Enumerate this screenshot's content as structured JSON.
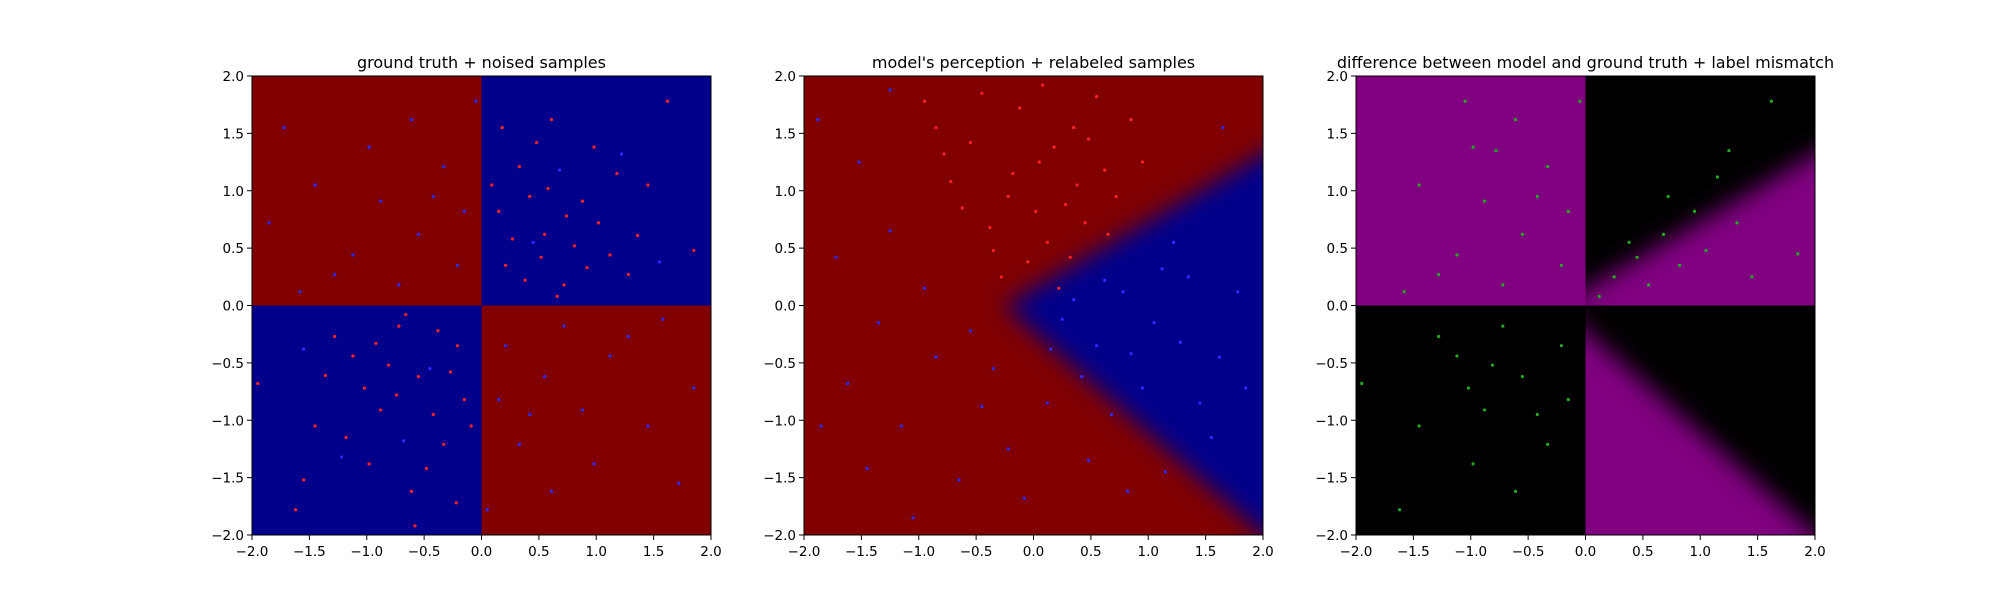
{
  "chart_data": [
    {
      "type": "heatmap",
      "title": "ground truth + noised samples",
      "xlim": [
        -2.0,
        2.0
      ],
      "ylim": [
        -2.0,
        2.0
      ],
      "xticks": [
        "−2.0",
        "−1.5",
        "−1.0",
        "−0.5",
        "0.0",
        "0.5",
        "1.0",
        "1.5",
        "2.0"
      ],
      "yticks": [
        "−2.0",
        "−1.5",
        "−1.0",
        "−0.5",
        "0.0",
        "0.5",
        "1.0",
        "1.5",
        "2.0"
      ],
      "background": "xor-quadrants",
      "colors": {
        "class_a": "#800000",
        "class_b": "#00008b",
        "pts_a": "#ff2222",
        "pts_b": "#2a2aff"
      },
      "points": [
        {
          "x": 0.55,
          "y": 0.62,
          "c": "a"
        },
        {
          "x": 0.21,
          "y": 0.35,
          "c": "a"
        },
        {
          "x": 0.88,
          "y": 0.91,
          "c": "a"
        },
        {
          "x": 1.12,
          "y": 0.44,
          "c": "a"
        },
        {
          "x": 0.33,
          "y": 1.21,
          "c": "a"
        },
        {
          "x": 0.72,
          "y": 0.18,
          "c": "a"
        },
        {
          "x": 1.45,
          "y": 1.05,
          "c": "a"
        },
        {
          "x": 0.15,
          "y": 0.82,
          "c": "a"
        },
        {
          "x": 0.98,
          "y": 1.38,
          "c": "a"
        },
        {
          "x": 0.61,
          "y": 1.62,
          "c": "a"
        },
        {
          "x": 1.28,
          "y": 0.27,
          "c": "a"
        },
        {
          "x": 0.42,
          "y": 0.95,
          "c": "a"
        },
        {
          "x": 0.81,
          "y": 0.52,
          "c": "a"
        },
        {
          "x": 1.02,
          "y": 0.72,
          "c": "a"
        },
        {
          "x": 0.27,
          "y": 0.58,
          "c": "a"
        },
        {
          "x": 0.66,
          "y": 0.08,
          "c": "a"
        },
        {
          "x": 1.62,
          "y": 1.78,
          "c": "a"
        },
        {
          "x": 0.48,
          "y": 1.42,
          "c": "a"
        },
        {
          "x": 0.09,
          "y": 1.05,
          "c": "a"
        },
        {
          "x": 1.18,
          "y": 1.15,
          "c": "a"
        },
        {
          "x": 0.74,
          "y": 0.78,
          "c": "a"
        },
        {
          "x": 0.38,
          "y": 0.22,
          "c": "a"
        },
        {
          "x": 0.92,
          "y": 0.33,
          "c": "a"
        },
        {
          "x": 1.36,
          "y": 0.61,
          "c": "a"
        },
        {
          "x": 0.58,
          "y": 1.02,
          "c": "a"
        },
        {
          "x": 0.18,
          "y": 1.55,
          "c": "a"
        },
        {
          "x": 1.85,
          "y": 0.48,
          "c": "a"
        },
        {
          "x": 0.52,
          "y": 0.42,
          "c": "a"
        },
        {
          "x": -0.55,
          "y": -0.62,
          "c": "a"
        },
        {
          "x": -0.21,
          "y": -0.35,
          "c": "a"
        },
        {
          "x": -0.88,
          "y": -0.91,
          "c": "a"
        },
        {
          "x": -1.12,
          "y": -0.44,
          "c": "a"
        },
        {
          "x": -0.33,
          "y": -1.21,
          "c": "a"
        },
        {
          "x": -0.72,
          "y": -0.18,
          "c": "a"
        },
        {
          "x": -1.45,
          "y": -1.05,
          "c": "a"
        },
        {
          "x": -0.15,
          "y": -0.82,
          "c": "a"
        },
        {
          "x": -0.98,
          "y": -1.38,
          "c": "a"
        },
        {
          "x": -0.61,
          "y": -1.62,
          "c": "a"
        },
        {
          "x": -1.28,
          "y": -0.27,
          "c": "a"
        },
        {
          "x": -0.42,
          "y": -0.95,
          "c": "a"
        },
        {
          "x": -0.81,
          "y": -0.52,
          "c": "a"
        },
        {
          "x": -1.02,
          "y": -0.72,
          "c": "a"
        },
        {
          "x": -0.27,
          "y": -0.58,
          "c": "a"
        },
        {
          "x": -0.66,
          "y": -0.08,
          "c": "a"
        },
        {
          "x": -1.62,
          "y": -1.78,
          "c": "a"
        },
        {
          "x": -0.48,
          "y": -1.42,
          "c": "a"
        },
        {
          "x": -0.09,
          "y": -1.05,
          "c": "a"
        },
        {
          "x": -1.18,
          "y": -1.15,
          "c": "a"
        },
        {
          "x": -0.74,
          "y": -0.78,
          "c": "a"
        },
        {
          "x": -0.38,
          "y": -0.22,
          "c": "a"
        },
        {
          "x": -0.92,
          "y": -0.33,
          "c": "a"
        },
        {
          "x": -1.36,
          "y": -0.61,
          "c": "a"
        },
        {
          "x": -1.95,
          "y": -0.68,
          "c": "a"
        },
        {
          "x": -0.58,
          "y": -1.92,
          "c": "a"
        },
        {
          "x": -1.55,
          "y": -1.52,
          "c": "a"
        },
        {
          "x": -0.22,
          "y": -1.72,
          "c": "a"
        },
        {
          "x": -0.55,
          "y": 0.62,
          "c": "b"
        },
        {
          "x": -0.21,
          "y": 0.35,
          "c": "b"
        },
        {
          "x": -0.88,
          "y": 0.91,
          "c": "b"
        },
        {
          "x": -1.12,
          "y": 0.44,
          "c": "b"
        },
        {
          "x": -0.33,
          "y": 1.21,
          "c": "b"
        },
        {
          "x": -0.72,
          "y": 0.18,
          "c": "b"
        },
        {
          "x": -1.45,
          "y": 1.05,
          "c": "b"
        },
        {
          "x": -0.15,
          "y": 0.82,
          "c": "b"
        },
        {
          "x": -0.98,
          "y": 1.38,
          "c": "b"
        },
        {
          "x": -0.61,
          "y": 1.62,
          "c": "b"
        },
        {
          "x": -1.28,
          "y": 0.27,
          "c": "b"
        },
        {
          "x": -0.42,
          "y": 0.95,
          "c": "b"
        },
        {
          "x": -1.72,
          "y": 1.55,
          "c": "b"
        },
        {
          "x": -1.85,
          "y": 0.72,
          "c": "b"
        },
        {
          "x": -0.05,
          "y": 1.78,
          "c": "b"
        },
        {
          "x": -1.58,
          "y": 0.12,
          "c": "b"
        },
        {
          "x": 0.55,
          "y": -0.62,
          "c": "b"
        },
        {
          "x": 0.21,
          "y": -0.35,
          "c": "b"
        },
        {
          "x": 0.88,
          "y": -0.91,
          "c": "b"
        },
        {
          "x": 1.12,
          "y": -0.44,
          "c": "b"
        },
        {
          "x": 0.33,
          "y": -1.21,
          "c": "b"
        },
        {
          "x": 0.72,
          "y": -0.18,
          "c": "b"
        },
        {
          "x": 1.45,
          "y": -1.05,
          "c": "b"
        },
        {
          "x": 0.15,
          "y": -0.82,
          "c": "b"
        },
        {
          "x": 0.98,
          "y": -1.38,
          "c": "b"
        },
        {
          "x": 0.61,
          "y": -1.62,
          "c": "b"
        },
        {
          "x": 1.28,
          "y": -0.27,
          "c": "b"
        },
        {
          "x": 0.42,
          "y": -0.95,
          "c": "b"
        },
        {
          "x": 1.72,
          "y": -1.55,
          "c": "b"
        },
        {
          "x": 1.85,
          "y": -0.72,
          "c": "b"
        },
        {
          "x": 0.05,
          "y": -1.78,
          "c": "b"
        },
        {
          "x": 1.58,
          "y": -0.12,
          "c": "b"
        },
        {
          "x": 0.45,
          "y": 0.55,
          "c": "b"
        },
        {
          "x": 1.22,
          "y": 1.32,
          "c": "b"
        },
        {
          "x": 0.68,
          "y": 1.18,
          "c": "b"
        },
        {
          "x": 1.55,
          "y": 0.38,
          "c": "b"
        },
        {
          "x": -0.45,
          "y": -0.55,
          "c": "b"
        },
        {
          "x": -1.22,
          "y": -1.32,
          "c": "b"
        },
        {
          "x": -0.68,
          "y": -1.18,
          "c": "b"
        },
        {
          "x": -1.55,
          "y": -0.38,
          "c": "b"
        }
      ]
    },
    {
      "type": "heatmap",
      "title": "model's perception + relabeled samples",
      "xlim": [
        -2.0,
        2.0
      ],
      "ylim": [
        -2.0,
        2.0
      ],
      "xticks": [
        "−2.0",
        "−1.5",
        "−1.0",
        "−0.5",
        "0.0",
        "0.5",
        "1.0",
        "1.5",
        "2.0"
      ],
      "yticks": [
        "−2.0",
        "−1.5",
        "−1.0",
        "−0.5",
        "0.0",
        "0.5",
        "1.0",
        "1.5",
        "2.0"
      ],
      "background": "wedge",
      "colors": {
        "class_a": "#800000",
        "class_b": "#00008b",
        "pts_a": "#ff2222",
        "pts_b": "#2a2aff"
      },
      "points": [
        {
          "x": 0.05,
          "y": 1.25,
          "c": "a"
        },
        {
          "x": -0.22,
          "y": 0.95,
          "c": "a"
        },
        {
          "x": 0.35,
          "y": 1.55,
          "c": "a"
        },
        {
          "x": 0.12,
          "y": 0.55,
          "c": "a"
        },
        {
          "x": -0.55,
          "y": 1.42,
          "c": "a"
        },
        {
          "x": 0.62,
          "y": 1.18,
          "c": "a"
        },
        {
          "x": -0.38,
          "y": 0.68,
          "c": "a"
        },
        {
          "x": 0.28,
          "y": 0.88,
          "c": "a"
        },
        {
          "x": -0.12,
          "y": 1.72,
          "c": "a"
        },
        {
          "x": 0.85,
          "y": 1.62,
          "c": "a"
        },
        {
          "x": -0.72,
          "y": 1.08,
          "c": "a"
        },
        {
          "x": 0.45,
          "y": 0.72,
          "c": "a"
        },
        {
          "x": -0.05,
          "y": 0.38,
          "c": "a"
        },
        {
          "x": 0.18,
          "y": 1.38,
          "c": "a"
        },
        {
          "x": -0.45,
          "y": 1.85,
          "c": "a"
        },
        {
          "x": 0.72,
          "y": 0.95,
          "c": "a"
        },
        {
          "x": -0.85,
          "y": 1.55,
          "c": "a"
        },
        {
          "x": 0.55,
          "y": 1.82,
          "c": "a"
        },
        {
          "x": -0.28,
          "y": 0.25,
          "c": "a"
        },
        {
          "x": 0.38,
          "y": 1.05,
          "c": "a"
        },
        {
          "x": 0.02,
          "y": 0.82,
          "c": "a"
        },
        {
          "x": -0.62,
          "y": 0.85,
          "c": "a"
        },
        {
          "x": 0.95,
          "y": 1.25,
          "c": "a"
        },
        {
          "x": 0.22,
          "y": 0.15,
          "c": "a"
        },
        {
          "x": -0.18,
          "y": 1.15,
          "c": "a"
        },
        {
          "x": 0.48,
          "y": 1.45,
          "c": "a"
        },
        {
          "x": -0.95,
          "y": 1.78,
          "c": "a"
        },
        {
          "x": 0.08,
          "y": 1.92,
          "c": "a"
        },
        {
          "x": -0.35,
          "y": 0.48,
          "c": "a"
        },
        {
          "x": 0.65,
          "y": 0.62,
          "c": "a"
        },
        {
          "x": -0.78,
          "y": 1.32,
          "c": "a"
        },
        {
          "x": 0.32,
          "y": 0.42,
          "c": "a"
        },
        {
          "x": 0.55,
          "y": -0.35,
          "c": "b"
        },
        {
          "x": 1.05,
          "y": -0.15,
          "c": "b"
        },
        {
          "x": 0.78,
          "y": 0.12,
          "c": "b"
        },
        {
          "x": 1.35,
          "y": 0.25,
          "c": "b"
        },
        {
          "x": 0.42,
          "y": -0.62,
          "c": "b"
        },
        {
          "x": 1.62,
          "y": -0.45,
          "c": "b"
        },
        {
          "x": 0.95,
          "y": -0.72,
          "c": "b"
        },
        {
          "x": 1.22,
          "y": 0.55,
          "c": "b"
        },
        {
          "x": 0.25,
          "y": -0.12,
          "c": "b"
        },
        {
          "x": 1.78,
          "y": 0.12,
          "c": "b"
        },
        {
          "x": 0.68,
          "y": -0.95,
          "c": "b"
        },
        {
          "x": 1.45,
          "y": -0.85,
          "c": "b"
        },
        {
          "x": 0.35,
          "y": 0.05,
          "c": "b"
        },
        {
          "x": 1.12,
          "y": 0.32,
          "c": "b"
        },
        {
          "x": 0.85,
          "y": -0.42,
          "c": "b"
        },
        {
          "x": 1.55,
          "y": -1.15,
          "c": "b"
        },
        {
          "x": 0.15,
          "y": -0.38,
          "c": "b"
        },
        {
          "x": 1.85,
          "y": -0.72,
          "c": "b"
        },
        {
          "x": 0.62,
          "y": 0.22,
          "c": "b"
        },
        {
          "x": 1.28,
          "y": -0.32,
          "c": "b"
        },
        {
          "x": -0.85,
          "y": -0.45,
          "c": "b"
        },
        {
          "x": -1.35,
          "y": -0.15,
          "c": "b"
        },
        {
          "x": -0.45,
          "y": -0.88,
          "c": "b"
        },
        {
          "x": -1.62,
          "y": -0.68,
          "c": "b"
        },
        {
          "x": -0.22,
          "y": -1.25,
          "c": "b"
        },
        {
          "x": -1.15,
          "y": -1.05,
          "c": "b"
        },
        {
          "x": -0.65,
          "y": -1.52,
          "c": "b"
        },
        {
          "x": -1.45,
          "y": -1.42,
          "c": "b"
        },
        {
          "x": -0.95,
          "y": 0.15,
          "c": "b"
        },
        {
          "x": -1.72,
          "y": 0.42,
          "c": "b"
        },
        {
          "x": -0.55,
          "y": -0.22,
          "c": "b"
        },
        {
          "x": -1.25,
          "y": 0.65,
          "c": "b"
        },
        {
          "x": 0.12,
          "y": -0.85,
          "c": "b"
        },
        {
          "x": 0.48,
          "y": -1.35,
          "c": "b"
        },
        {
          "x": -0.08,
          "y": -1.68,
          "c": "b"
        },
        {
          "x": 0.82,
          "y": -1.62,
          "c": "b"
        },
        {
          "x": -1.85,
          "y": -1.05,
          "c": "b"
        },
        {
          "x": -1.05,
          "y": -1.85,
          "c": "b"
        },
        {
          "x": 1.15,
          "y": -1.45,
          "c": "b"
        },
        {
          "x": -0.35,
          "y": -0.55,
          "c": "b"
        },
        {
          "x": -1.52,
          "y": 1.25,
          "c": "b"
        },
        {
          "x": -1.88,
          "y": 1.62,
          "c": "b"
        },
        {
          "x": -1.25,
          "y": 1.88,
          "c": "b"
        },
        {
          "x": 1.65,
          "y": 1.55,
          "c": "b"
        }
      ]
    },
    {
      "type": "heatmap",
      "title": "difference between model and ground truth + label mismatch",
      "xlim": [
        -2.0,
        2.0
      ],
      "ylim": [
        -2.0,
        2.0
      ],
      "xticks": [
        "−2.0",
        "−1.5",
        "−1.0",
        "−0.5",
        "0.0",
        "0.5",
        "1.0",
        "1.5",
        "2.0"
      ],
      "yticks": [
        "−2.0",
        "−1.5",
        "−1.0",
        "−0.5",
        "0.0",
        "0.5",
        "1.0",
        "1.5",
        "2.0"
      ],
      "background": "difference",
      "colors": {
        "match": "#000000",
        "mismatch": "#800080",
        "pts": "#22aa22"
      },
      "points": [
        {
          "x": -0.55,
          "y": 0.62
        },
        {
          "x": -0.21,
          "y": 0.35
        },
        {
          "x": -0.88,
          "y": 0.91
        },
        {
          "x": -1.12,
          "y": 0.44
        },
        {
          "x": -0.33,
          "y": 1.21
        },
        {
          "x": -0.72,
          "y": 0.18
        },
        {
          "x": -1.45,
          "y": 1.05
        },
        {
          "x": -0.15,
          "y": 0.82
        },
        {
          "x": -0.98,
          "y": 1.38
        },
        {
          "x": -0.61,
          "y": 1.62
        },
        {
          "x": -1.28,
          "y": 0.27
        },
        {
          "x": -0.42,
          "y": 0.95
        },
        {
          "x": -0.05,
          "y": 1.78
        },
        {
          "x": -1.58,
          "y": 0.12
        },
        {
          "x": -0.78,
          "y": 1.35
        },
        {
          "x": -1.05,
          "y": 1.78
        },
        {
          "x": -0.55,
          "y": -0.62
        },
        {
          "x": -0.21,
          "y": -0.35
        },
        {
          "x": -0.88,
          "y": -0.91
        },
        {
          "x": -1.12,
          "y": -0.44
        },
        {
          "x": -0.33,
          "y": -1.21
        },
        {
          "x": -0.72,
          "y": -0.18
        },
        {
          "x": -1.45,
          "y": -1.05
        },
        {
          "x": -0.15,
          "y": -0.82
        },
        {
          "x": -0.98,
          "y": -1.38
        },
        {
          "x": -0.61,
          "y": -1.62
        },
        {
          "x": -1.28,
          "y": -0.27
        },
        {
          "x": -0.42,
          "y": -0.95
        },
        {
          "x": -0.81,
          "y": -0.52
        },
        {
          "x": -1.02,
          "y": -0.72
        },
        {
          "x": -1.62,
          "y": -1.78
        },
        {
          "x": -1.95,
          "y": -0.68
        },
        {
          "x": 0.45,
          "y": 0.42
        },
        {
          "x": 0.68,
          "y": 0.62
        },
        {
          "x": 0.95,
          "y": 0.82
        },
        {
          "x": 1.15,
          "y": 1.12
        },
        {
          "x": 0.25,
          "y": 0.25
        },
        {
          "x": 0.82,
          "y": 0.35
        },
        {
          "x": 1.32,
          "y": 0.72
        },
        {
          "x": 0.55,
          "y": 0.18
        },
        {
          "x": 1.05,
          "y": 0.48
        },
        {
          "x": 0.38,
          "y": 0.55
        },
        {
          "x": 1.62,
          "y": 1.78
        },
        {
          "x": 1.85,
          "y": 0.45
        },
        {
          "x": 0.12,
          "y": 0.08
        },
        {
          "x": 1.45,
          "y": 0.25
        },
        {
          "x": 0.72,
          "y": 0.95
        },
        {
          "x": 1.25,
          "y": 1.35
        }
      ]
    }
  ]
}
